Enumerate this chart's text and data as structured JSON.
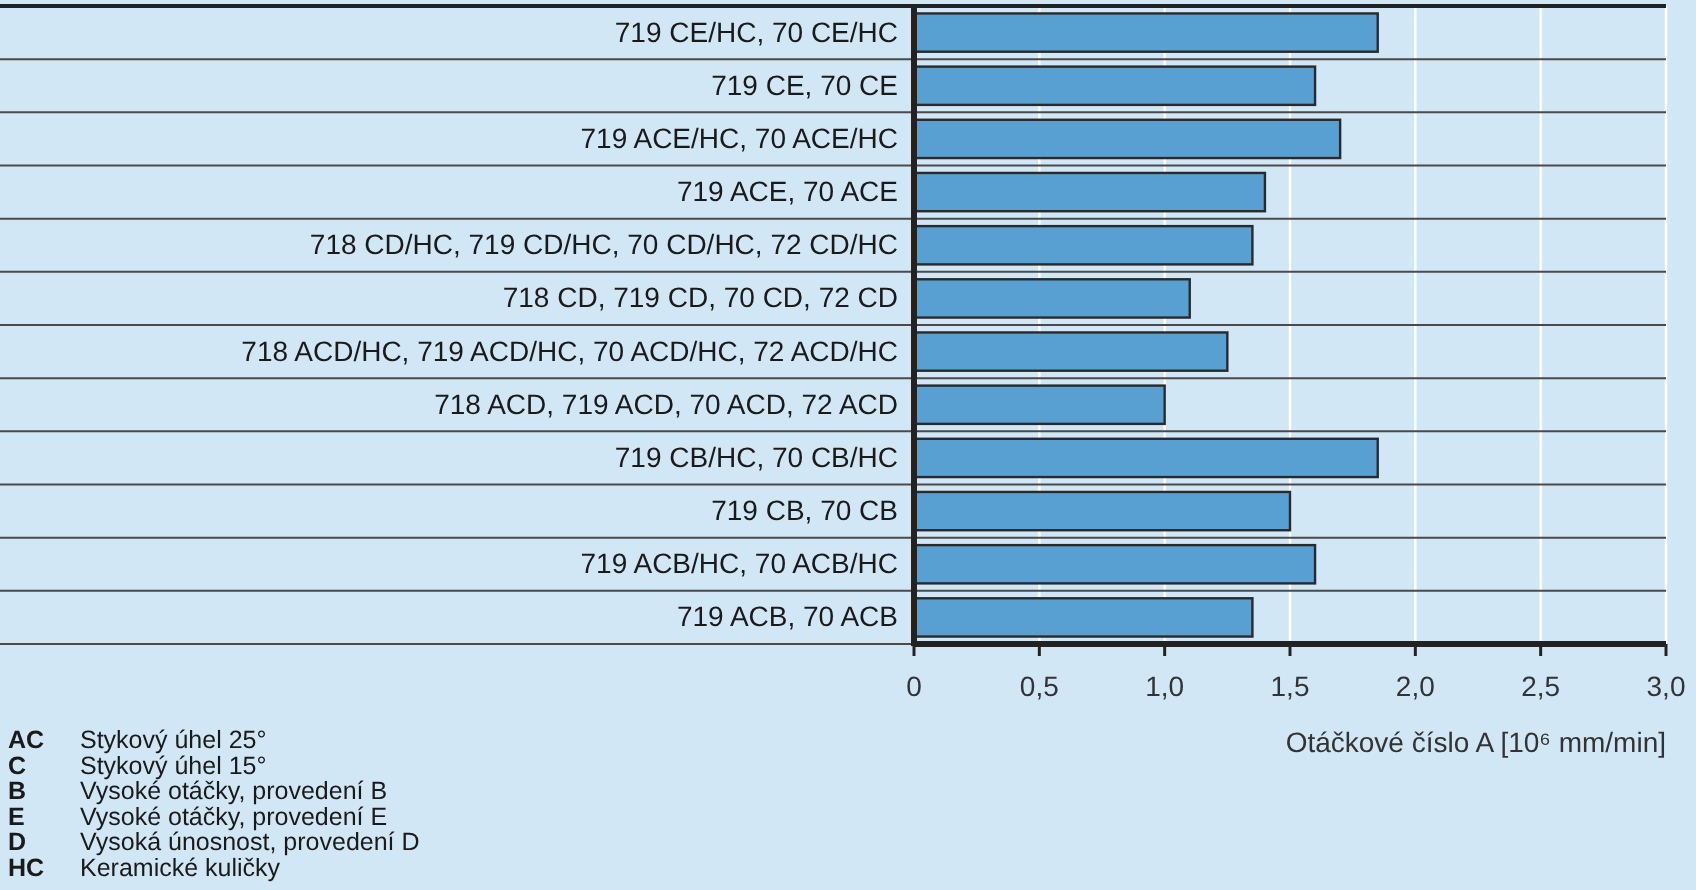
{
  "chart_data": {
    "type": "bar",
    "orientation": "horizontal",
    "categories": [
      "719 CE/HC, 70 CE/HC",
      "719 CE, 70 CE",
      "719 ACE/HC, 70 ACE/HC",
      "719 ACE, 70 ACE",
      "718 CD/HC, 719 CD/HC, 70 CD/HC, 72 CD/HC",
      "718 CD, 719 CD, 70 CD, 72 CD",
      "718 ACD/HC, 719 ACD/HC, 70 ACD/HC, 72 ACD/HC",
      "718 ACD, 719 ACD, 70 ACD, 72 ACD",
      "719 CB/HC, 70 CB/HC",
      "719 CB, 70 CB",
      "719 ACB/HC, 70 ACB/HC",
      "719 ACB, 70 ACB"
    ],
    "values": [
      1.85,
      1.6,
      1.7,
      1.4,
      1.35,
      1.1,
      1.25,
      1.0,
      1.85,
      1.5,
      1.6,
      1.35
    ],
    "color": "#58a0d2",
    "xlim": [
      0,
      3
    ],
    "xticks": [
      0,
      {
        "value": 0.5,
        "label": "0,5"
      },
      {
        "value": 1,
        "label": "1,0"
      },
      {
        "value": 1.5,
        "label": "1,5"
      },
      {
        "value": 2,
        "label": "2,0"
      },
      {
        "value": 2.5,
        "label": "2,5"
      },
      {
        "value": 3,
        "label": "3,0"
      }
    ],
    "xlabel": "Otáčkové číslo A [10⁶ mm/min]",
    "grid": "x",
    "annotations": [
      "AC Stykový úhel 25°",
      "C Stykový úhel 15°",
      "B Vysoké otáčky, provedení B",
      "E Vysoké otáčky, provedení E",
      "D Vysoká únosnost, provedení D",
      "HC Keramické kuličky"
    ]
  }
}
